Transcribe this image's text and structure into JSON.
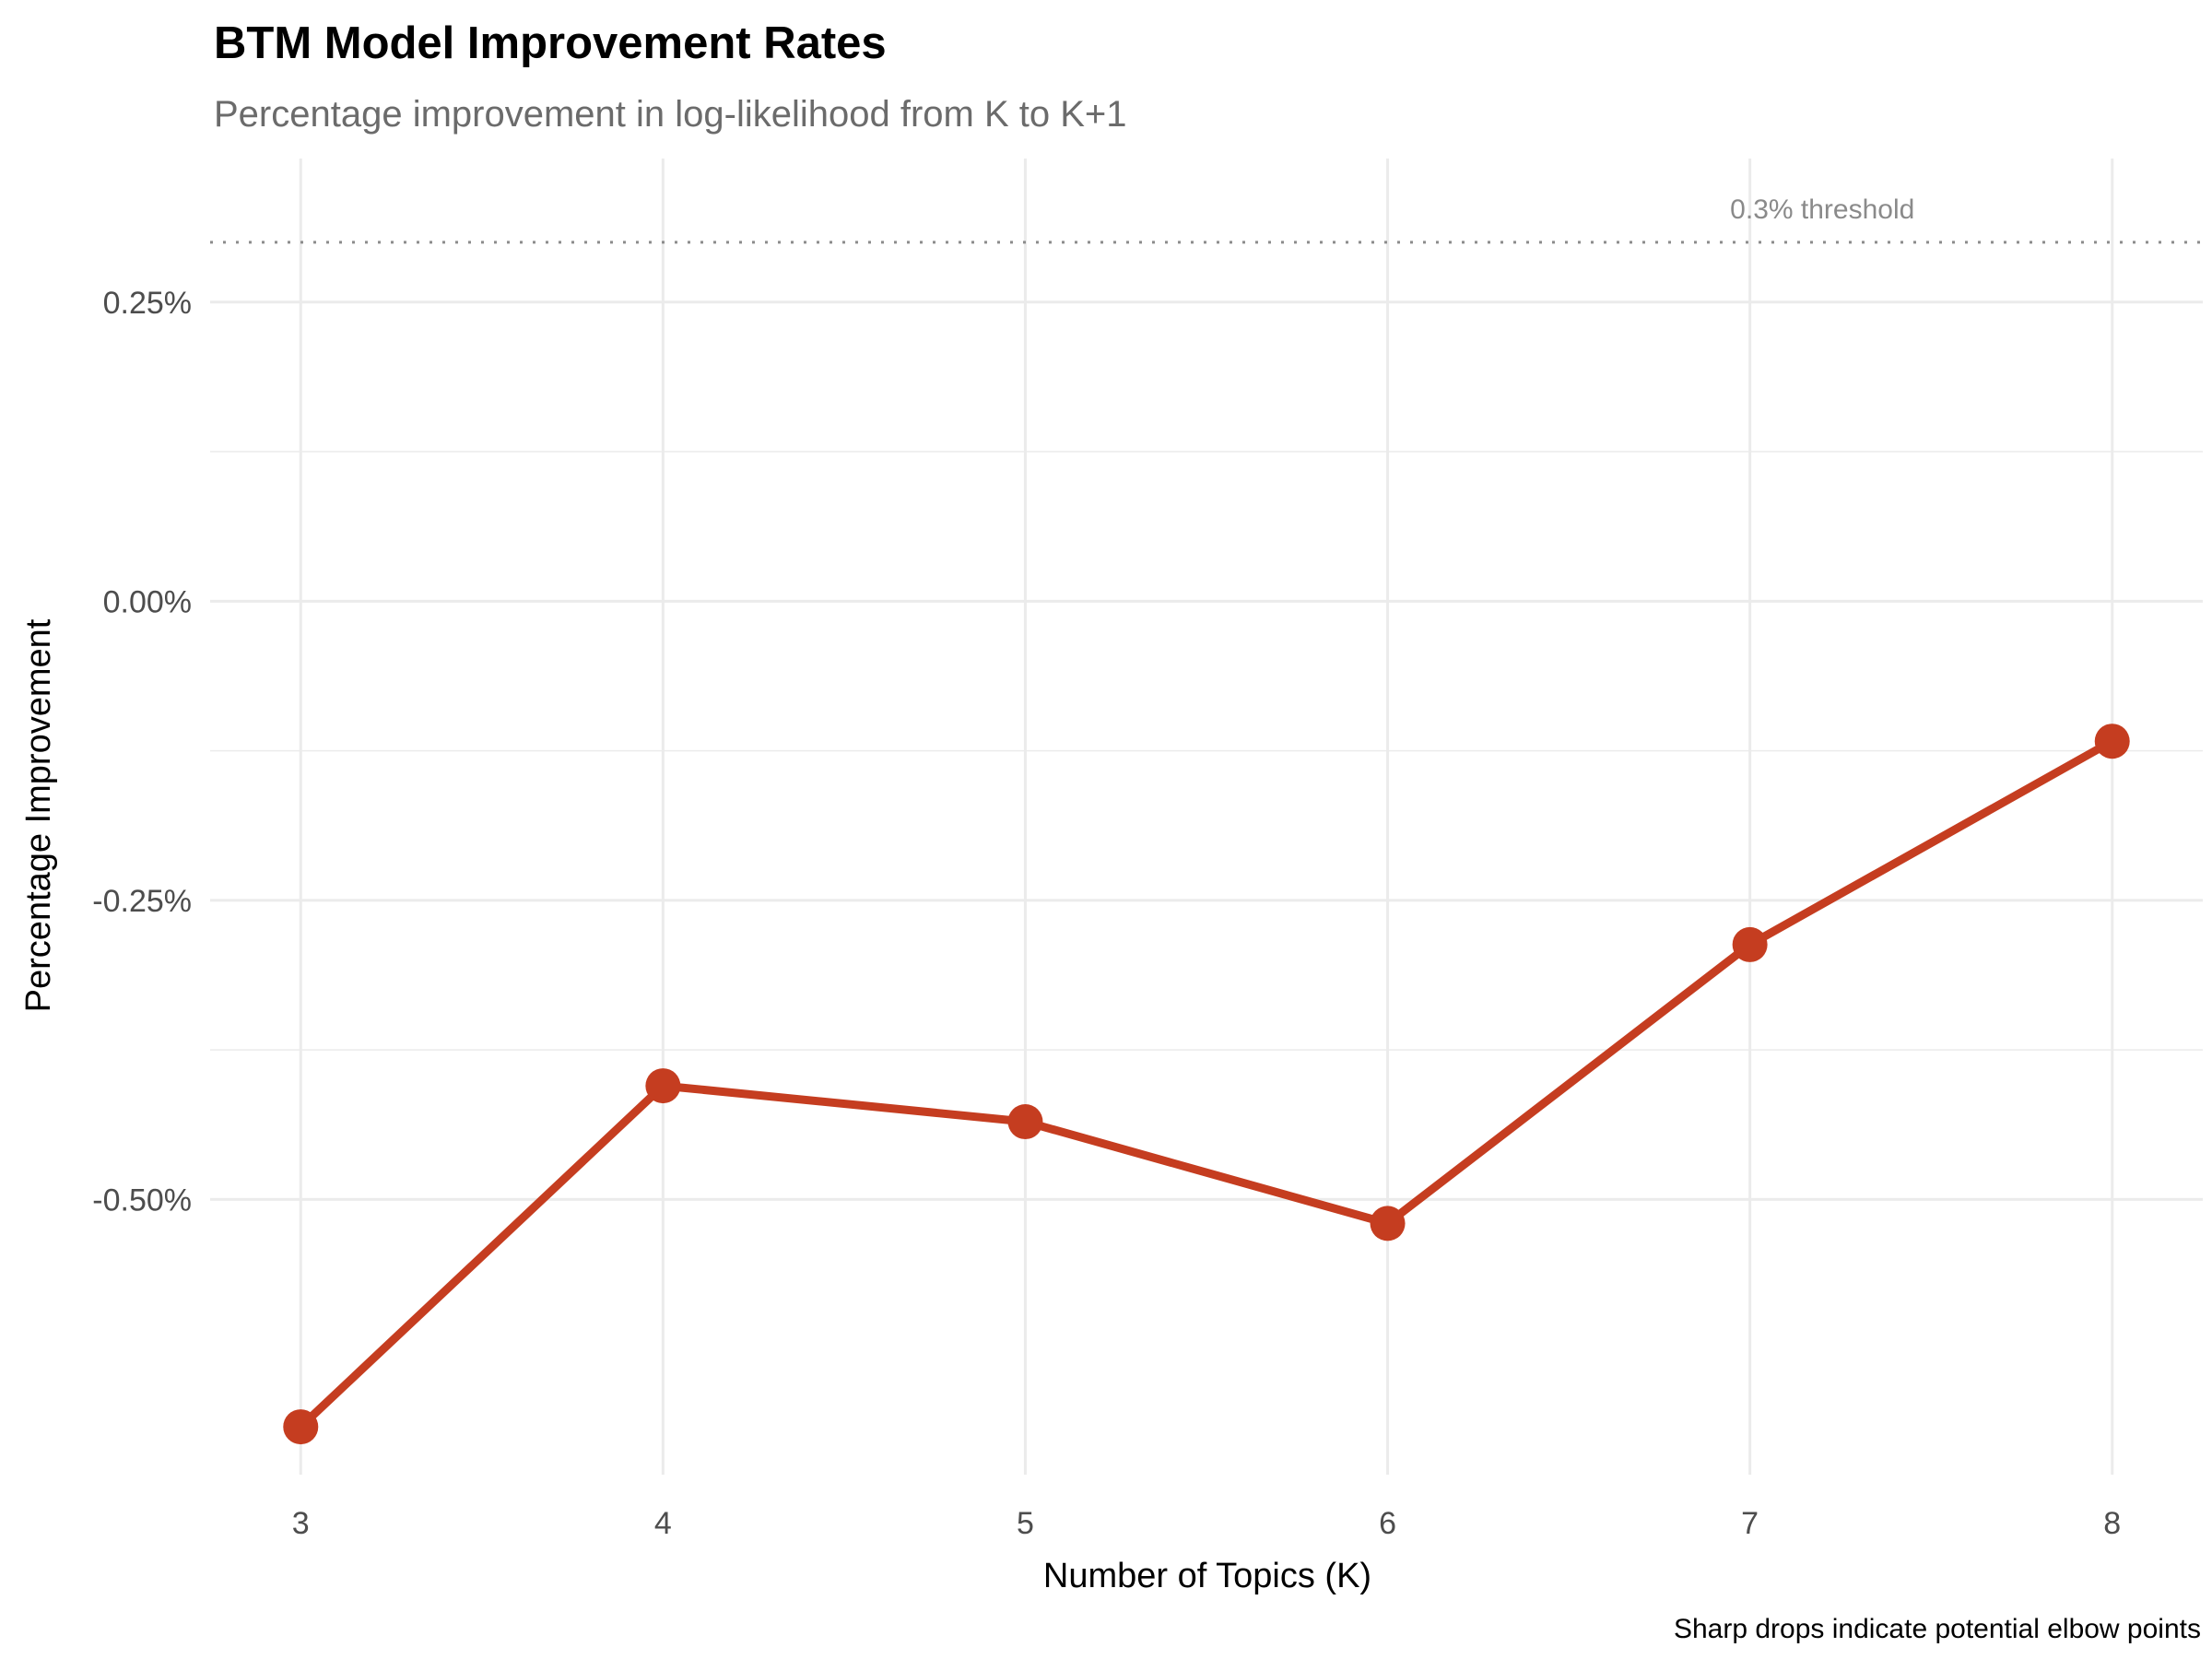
{
  "chart_data": {
    "type": "line",
    "title": "BTM Model Improvement Rates",
    "subtitle": "Percentage improvement in log-likelihood from K to K+1",
    "xlabel": "Number of Topics (K)",
    "ylabel": "Percentage Improvement",
    "caption": "Sharp drops indicate potential elbow points",
    "x": [
      3,
      4,
      5,
      6,
      7,
      8
    ],
    "values": [
      -0.69,
      -0.405,
      -0.435,
      -0.52,
      -0.287,
      -0.117
    ],
    "xlim": [
      2.75,
      8.25
    ],
    "ylim": [
      -0.73,
      0.37
    ],
    "x_ticks": [
      3,
      4,
      5,
      6,
      7,
      8
    ],
    "y_ticks": [
      {
        "value": 0.25,
        "label": "0.25%"
      },
      {
        "value": 0.0,
        "label": "0.00%"
      },
      {
        "value": -0.25,
        "label": "-0.25%"
      },
      {
        "value": -0.5,
        "label": "-0.50%"
      }
    ],
    "threshold": {
      "value": 0.3,
      "label": "0.3% threshold",
      "x": 7.2
    },
    "grid": true,
    "colors": {
      "line": "#c53d20",
      "grid": "#ebebeb",
      "threshold": "#8c8c8c"
    }
  }
}
